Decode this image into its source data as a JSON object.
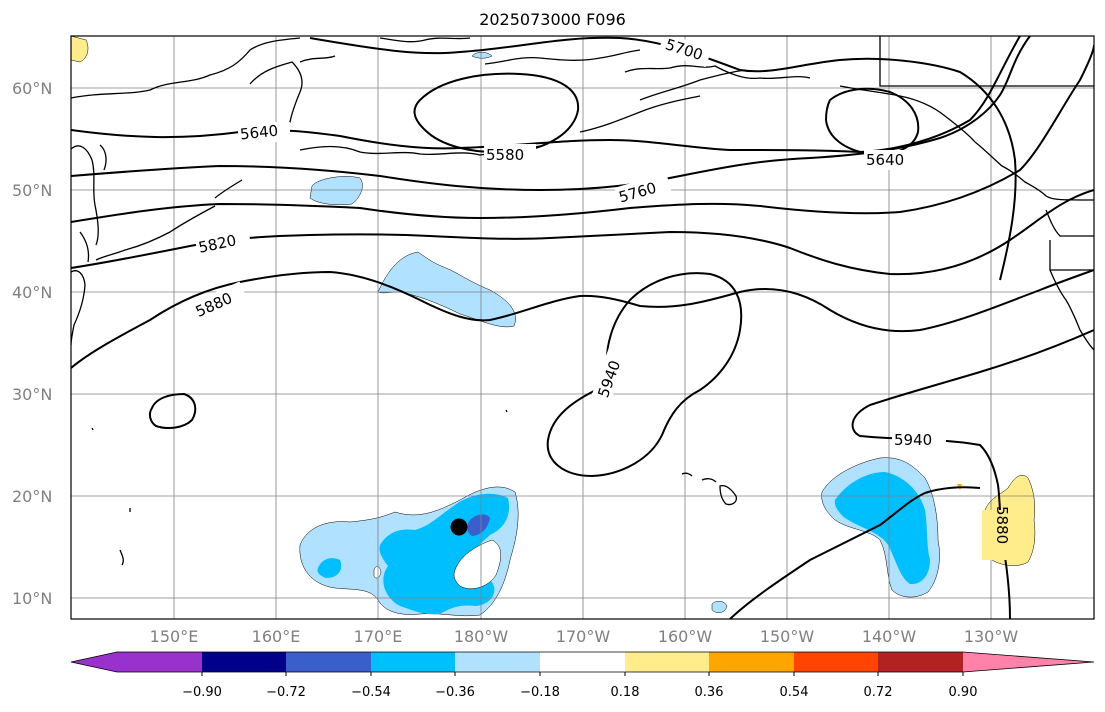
{
  "title": "2025073000 F096",
  "lat_labels": [
    "60°N",
    "50°N",
    "40°N",
    "30°N",
    "20°N",
    "10°N"
  ],
  "lon_labels": [
    "150°E",
    "160°E",
    "170°E",
    "180°W",
    "170°W",
    "160°W",
    "150°W",
    "140°W",
    "130°W"
  ],
  "contour_labels": [
    "5700",
    "5640",
    "5580",
    "5640",
    "5760",
    "5820",
    "5880",
    "5940",
    "5940",
    "5880"
  ],
  "colorbar": {
    "ticks": [
      "−0.90",
      "−0.72",
      "−0.54",
      "−0.36",
      "−0.18",
      "0.18",
      "0.36",
      "0.54",
      "0.72",
      "0.90"
    ],
    "colors": [
      "#9932CC",
      "#00008B",
      "#3A5FCD",
      "#00BFFF",
      "#B0E2FF",
      "#FFFFFF",
      "#FFEC8B",
      "#FFA500",
      "#FF4500",
      "#B22222",
      "#FF82AB"
    ]
  },
  "colors": {
    "grid": "#808080",
    "contour": "#000000",
    "coast": "#000000"
  },
  "marker": "storm-center-dot"
}
